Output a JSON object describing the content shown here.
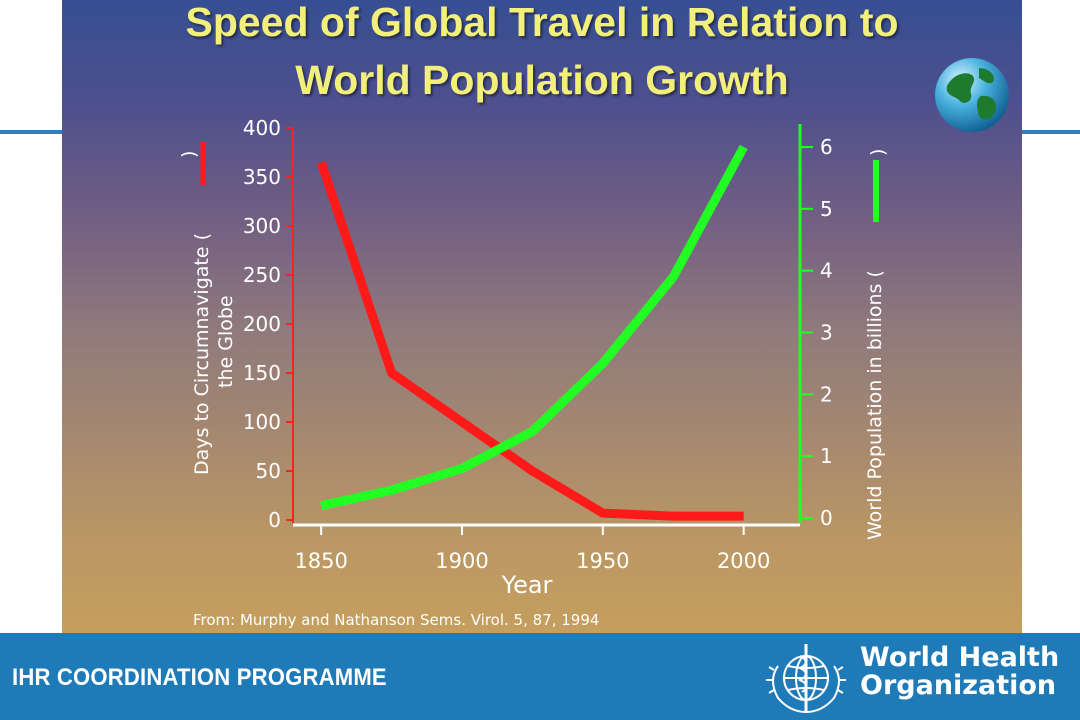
{
  "slide": {
    "title_line1": "Speed of Global Travel in Relation to",
    "title_line2": "World Population Growth",
    "source": "From: Murphy and Nathanson Sems. Virol. 5, 87, 1994"
  },
  "footer": {
    "program": "IHR COORDINATION PROGRAMME",
    "org_line1": "World Health",
    "org_line2": "Organization"
  },
  "colors": {
    "days_series": "#ff1a1a",
    "population_series": "#22ff22",
    "footer": "#1f7ab8",
    "title": "#f2f07a"
  },
  "icons": [
    "globe-icon",
    "who-emblem-icon"
  ],
  "chart_data": {
    "type": "line",
    "xlabel": "Year",
    "ylabel_left_line1": "Days to Circumnavigate (",
    "ylabel_left_line2": "the Globe",
    "ylabel_right": "World Population in billions  (",
    "x_ticks": [
      1850,
      1900,
      1950,
      2000
    ],
    "xlim": [
      1840,
      2020
    ],
    "ylim_left": [
      0,
      400
    ],
    "left_ticks": [
      0,
      50,
      100,
      150,
      200,
      250,
      300,
      350,
      400
    ],
    "ylim_right": [
      0,
      6
    ],
    "right_ticks": [
      0,
      1,
      2,
      3,
      4,
      5,
      6
    ],
    "series": [
      {
        "axis": "left",
        "color": "#ff1a1a",
        "x": [
          1850,
          1875,
          1900,
          1925,
          1950,
          1975,
          2000
        ],
        "values": [
          365,
          150,
          100,
          50,
          7,
          4,
          4
        ]
      },
      {
        "axis": "right",
        "color": "#22ff22",
        "x": [
          1850,
          1875,
          1900,
          1925,
          1950,
          1975,
          2000
        ],
        "values": [
          0.2,
          0.45,
          0.8,
          1.4,
          2.5,
          3.9,
          6.0
        ]
      }
    ]
  }
}
